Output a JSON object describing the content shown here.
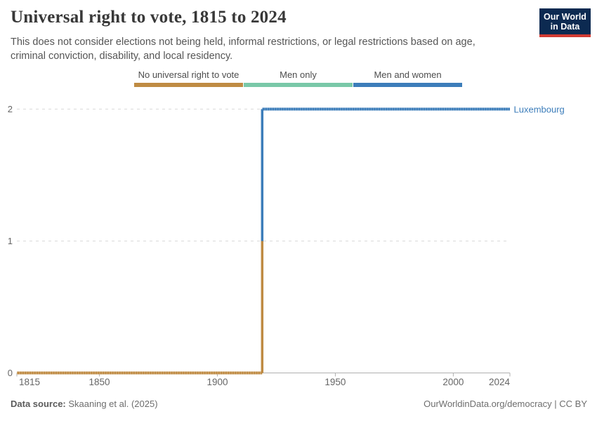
{
  "header": {
    "title": "Universal right to vote, 1815 to 2024",
    "subtitle": "This does not consider elections not being held, informal restrictions, or legal restrictions based on age, criminal conviction, disability, and local residency."
  },
  "logo": {
    "line1": "Our World",
    "line2": "in Data",
    "bg_color": "#0C2A51",
    "accent_color": "#D23B33"
  },
  "legend": {
    "items": [
      {
        "label": "No universal right to vote",
        "color": "#BF8B43"
      },
      {
        "label": "Men only",
        "color": "#79C8A8"
      },
      {
        "label": "Men and women",
        "color": "#3C7DBA"
      }
    ]
  },
  "chart_data": {
    "type": "line",
    "subtype": "step",
    "entity": "Luxembourg",
    "entity_color": "#3C7DBA",
    "title": "Universal right to vote, 1815 to 2024",
    "x_range": [
      1815,
      2024
    ],
    "y_range": [
      0,
      2
    ],
    "x_ticks": [
      1815,
      1850,
      1900,
      1950,
      2000,
      2024
    ],
    "y_ticks": [
      0,
      1,
      2
    ],
    "value_labels": {
      "0": "No universal right to vote",
      "1": "Men only",
      "2": "Men and women"
    },
    "segments": [
      {
        "start_year": 1815,
        "end_year": 1919,
        "value": 0,
        "category": "No universal right to vote",
        "color": "#BF8B43"
      },
      {
        "start_year": 1919,
        "end_year": 2024,
        "value": 2,
        "category": "Men and women",
        "color": "#3C7DBA"
      }
    ],
    "transition": {
      "year": 1919,
      "parts": [
        {
          "from_value": 0,
          "to_value": 1,
          "color": "#BF8B43"
        },
        {
          "from_value": 1,
          "to_value": 2,
          "color": "#3C7DBA"
        }
      ]
    },
    "grid": "dashed-horizontal",
    "legend_position": "top"
  },
  "axis_style": {
    "grid_color": "#DADADA",
    "axis_color": "#AFAFAF",
    "tick_label_color": "#666666"
  },
  "footer": {
    "source_label": "Data source:",
    "source_text": " Skaaning et al. (2025)",
    "attribution": "OurWorldinData.org/democracy | CC BY"
  }
}
